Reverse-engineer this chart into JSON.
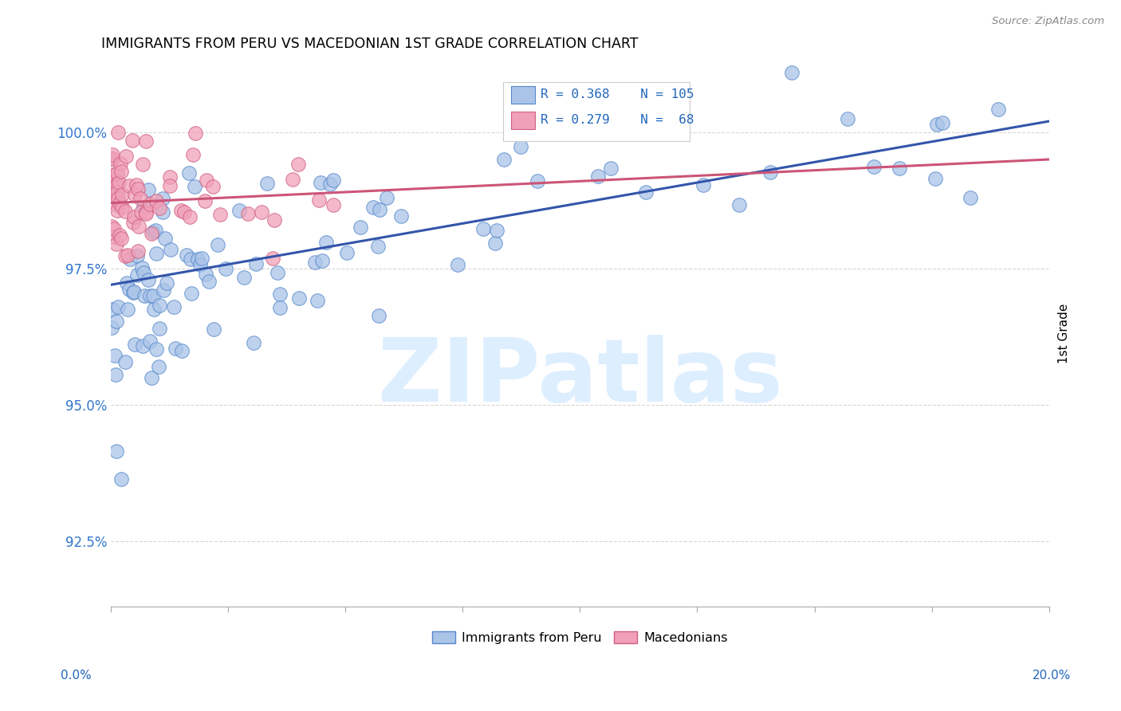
{
  "title": "IMMIGRANTS FROM PERU VS MACEDONIAN 1ST GRADE CORRELATION CHART",
  "source": "Source: ZipAtlas.com",
  "ylabel": "1st Grade",
  "yticks": [
    92.5,
    95.0,
    97.5,
    100.0
  ],
  "ytick_labels": [
    "92.5%",
    "95.0%",
    "97.5%",
    "100.0%"
  ],
  "xlim": [
    0.0,
    20.0
  ],
  "ylim": [
    91.3,
    101.3
  ],
  "legend1_label": "Immigrants from Peru",
  "legend2_label": "Macedonians",
  "R_peru": 0.368,
  "N_peru": 105,
  "R_mac": 0.279,
  "N_mac": 68,
  "color_peru": "#aac4e8",
  "color_peru_edge": "#5588cc",
  "color_peru_line": "#3355aa",
  "color_mac": "#f0a0b8",
  "color_mac_edge": "#d06080",
  "color_mac_line": "#cc5577",
  "watermark_color": "#ddeeff",
  "peru_line_y0": 97.2,
  "peru_line_y1": 100.2,
  "mac_line_y0": 98.7,
  "mac_line_y1": 99.5
}
